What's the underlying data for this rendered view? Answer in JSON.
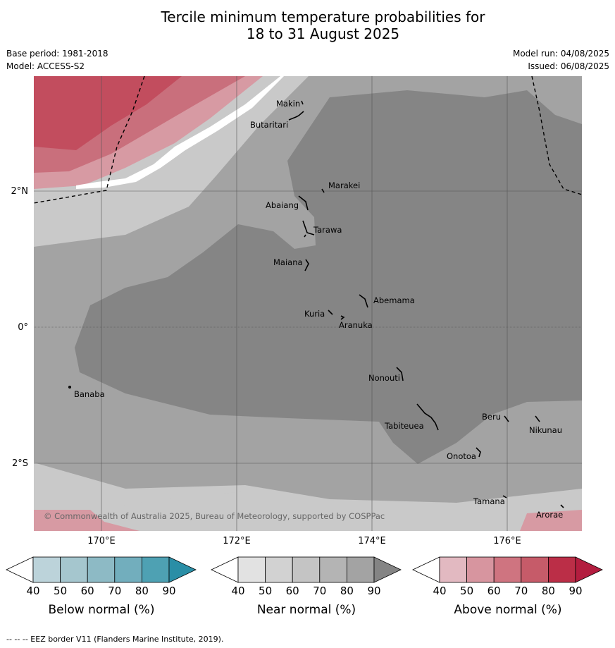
{
  "title_line1": "Tercile minimum temperature probabilities for",
  "title_line2": "18 to 31 August 2025",
  "base_period": "Base period: 1981-2018",
  "model": "Model: ACCESS-S2",
  "model_run": "Model run: 04/08/2025",
  "issued": "Issued: 06/08/2025",
  "lat_labels": [
    "2°N",
    "0°",
    "2°S"
  ],
  "lon_labels": [
    "170°E",
    "172°E",
    "174°E",
    "176°E"
  ],
  "places": [
    "Makin",
    "Butaritari",
    "Marakei",
    "Abaiang",
    "Tarawa",
    "Maiana",
    "Abemama",
    "Kuria",
    "Aranuka",
    "Nonouti",
    "Banaba",
    "Tabiteuea",
    "Beru",
    "Nikunau",
    "Onotoa",
    "Tamana",
    "Arorae"
  ],
  "copyright": "© Commonwealth of Australia 2025, Bureau of Meteorology, supported by COSPPac",
  "colorbars": [
    {
      "label": "Below normal (%)",
      "ticks": [
        "40",
        "50",
        "60",
        "70",
        "80",
        "90"
      ],
      "colors": [
        "#ffffff",
        "#bcd3da",
        "#a5c6ce",
        "#8dbac5",
        "#72aebd",
        "#4ea1b3",
        "#2a8ea6"
      ]
    },
    {
      "label": "Near normal (%)",
      "ticks": [
        "40",
        "50",
        "60",
        "70",
        "80",
        "90"
      ],
      "colors": [
        "#ffffff",
        "#e2e2e2",
        "#d2d2d2",
        "#c4c4c4",
        "#b4b4b4",
        "#a3a3a3",
        "#848484"
      ]
    },
    {
      "label": "Above normal (%)",
      "ticks": [
        "40",
        "50",
        "60",
        "70",
        "80",
        "90"
      ],
      "colors": [
        "#ffffff",
        "#e2b9c1",
        "#d7959f",
        "#cf7480",
        "#c65b69",
        "#bb2e47",
        "#b31d3f"
      ]
    }
  ],
  "footnote": "--  --  -- EEZ border V11 (Flanders Marine Institute, 2019)."
}
